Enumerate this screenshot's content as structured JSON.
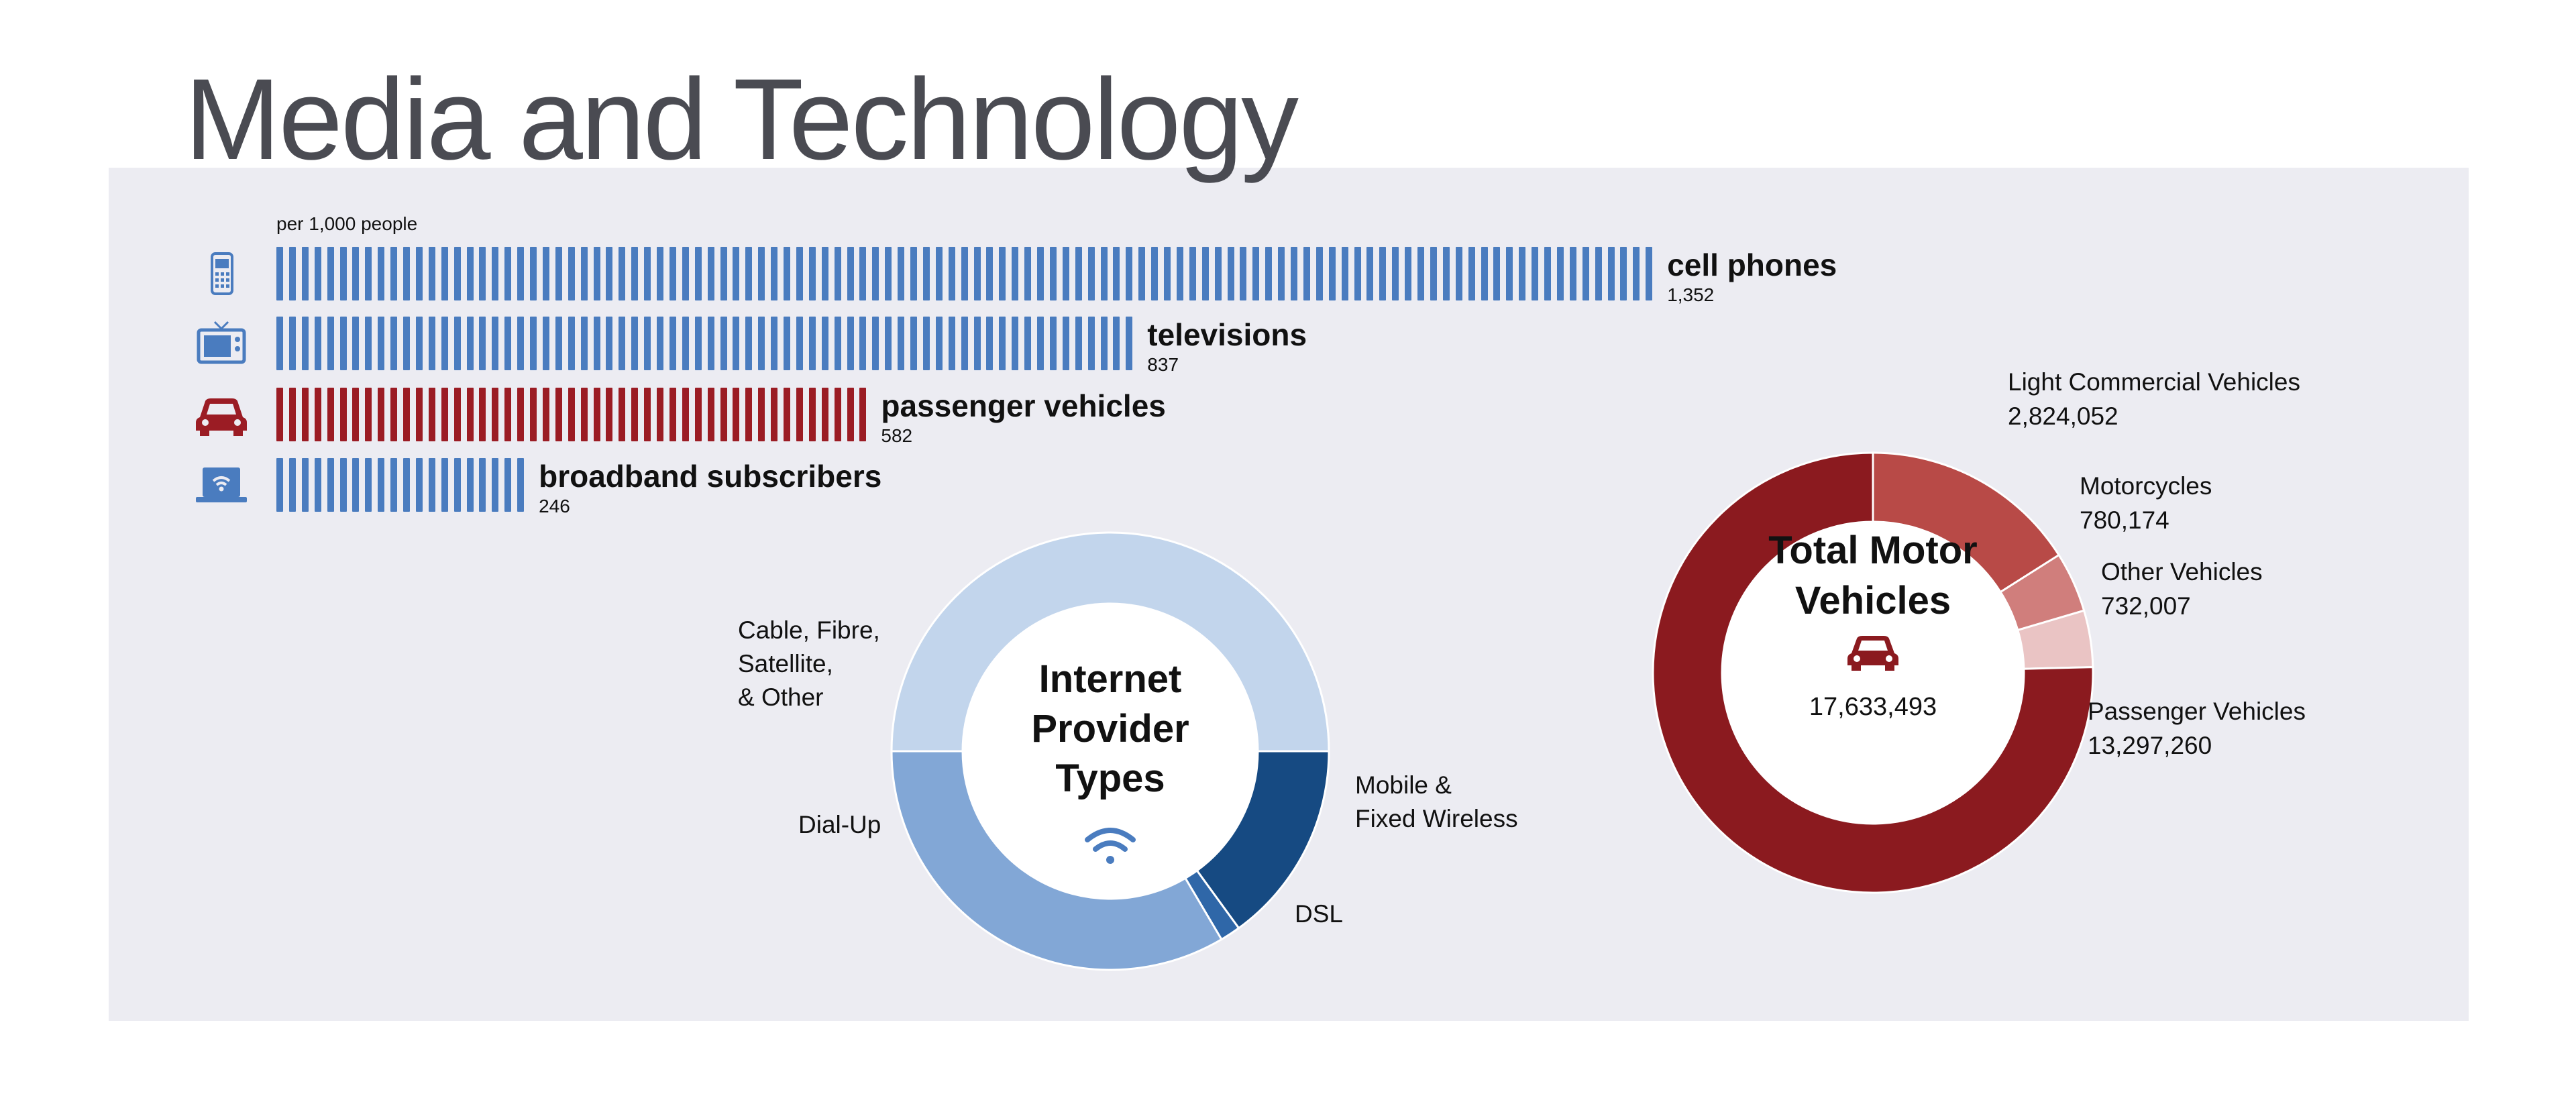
{
  "title": "Media and Technology",
  "colors": {
    "panel": "#ececf2",
    "blue": "#4a7cbf",
    "red": "#8b1a1f",
    "title": "#4a4b52"
  },
  "pictograph": {
    "unit_label": "per 1,000 people",
    "tick_unit": 12.4,
    "rows": [
      {
        "label": "cell phones",
        "value": 1352,
        "value_text": "1,352",
        "icon": "cell-phone-icon",
        "color": "#4a7cbf"
      },
      {
        "label": "televisions",
        "value": 837,
        "value_text": "837",
        "icon": "television-icon",
        "color": "#4a7cbf"
      },
      {
        "label": "passenger vehicles",
        "value": 582,
        "value_text": "582",
        "icon": "car-icon",
        "color": "#9b1c24"
      },
      {
        "label": "broadband subscribers",
        "value": 246,
        "value_text": "246",
        "icon": "laptop-wifi-icon",
        "color": "#4a7cbf"
      }
    ]
  },
  "chart_data": [
    {
      "type": "pie",
      "title": "Internet Provider Types",
      "center_icon": "wifi-icon",
      "categories": [
        "Mobile & Fixed Wireless",
        "DSL",
        "Dial-Up",
        "Cable, Fibre, Satellite, & Other"
      ],
      "values": [
        15,
        1.5,
        33.5,
        50
      ],
      "colors": [
        "#164a82",
        "#2f67a8",
        "#82a7d6",
        "#c2d5ec"
      ]
    },
    {
      "type": "pie",
      "title": "Total Motor Vehicles",
      "center_icon": "car-icon",
      "total": "17,633,493",
      "categories": [
        "Light Commercial Vehicles",
        "Motorcycles",
        "Other Vehicles",
        "Passenger Vehicles"
      ],
      "values": [
        2824052,
        780174,
        732007,
        13297260
      ],
      "value_labels": [
        "2,824,052",
        "780,174",
        "732,007",
        "13,297,260"
      ],
      "colors": [
        "#b84a47",
        "#d07e7c",
        "#eac4c4",
        "#8b1a1f"
      ]
    }
  ]
}
